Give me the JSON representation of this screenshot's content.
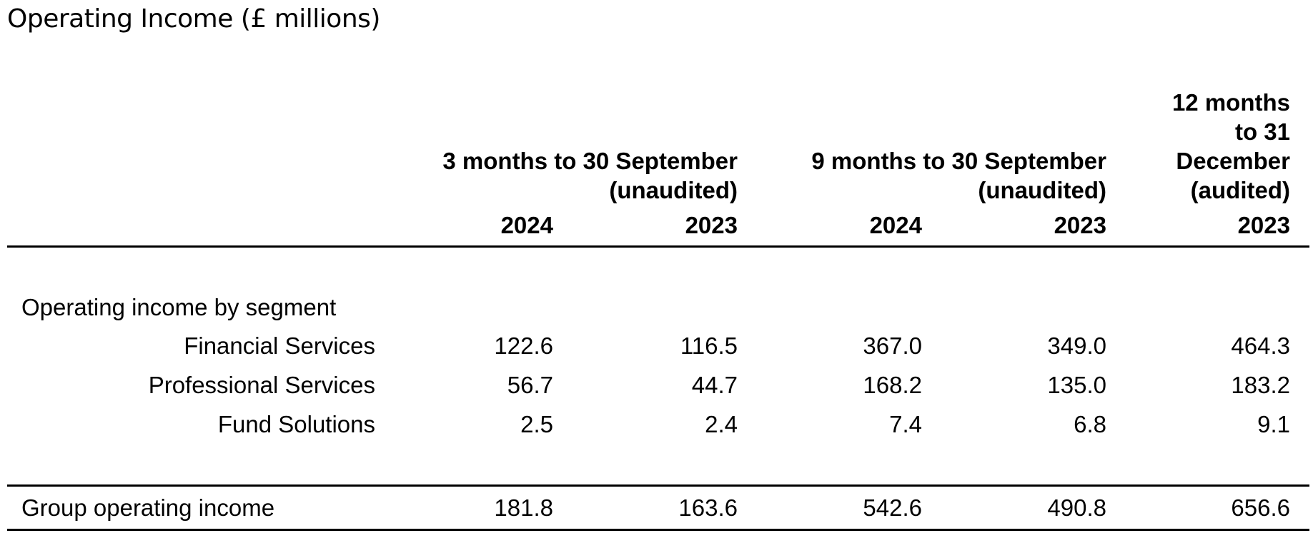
{
  "title": "Operating Income (£ millions)",
  "headers": {
    "three_months": [
      "3 months to 30 September",
      "(unaudited)"
    ],
    "nine_months": [
      "9 months to 30 September",
      "(unaudited)"
    ],
    "twelve_months": [
      "12 months",
      "to 31",
      "December",
      "(audited)"
    ]
  },
  "years": [
    "2024",
    "2023",
    "2024",
    "2023",
    "2023"
  ],
  "section_label": "Operating income by segment",
  "rows": [
    {
      "label": "Financial Services",
      "values": [
        "122.6",
        "116.5",
        "367.0",
        "349.0",
        "464.3"
      ]
    },
    {
      "label": "Professional Services",
      "values": [
        "56.7",
        "44.7",
        "168.2",
        "135.0",
        "183.2"
      ]
    },
    {
      "label": "Fund Solutions",
      "values": [
        "2.5",
        "2.4",
        "7.4",
        "6.8",
        "9.1"
      ]
    }
  ],
  "total": {
    "label": "Group operating income",
    "values": [
      "181.8",
      "163.6",
      "542.6",
      "490.8",
      "656.6"
    ]
  }
}
